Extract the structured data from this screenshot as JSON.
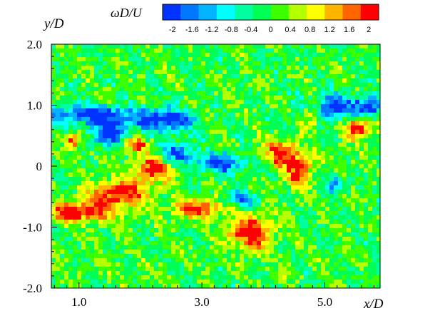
{
  "chart_data": {
    "type": "heatmap",
    "title": "",
    "xlabel": "x/D",
    "ylabel": "y/D",
    "xlim": [
      0.55,
      5.9
    ],
    "ylim": [
      -2.0,
      2.0
    ],
    "x_ticks": [
      1.0,
      3.0,
      5.0
    ],
    "x_tick_labels": [
      "1.0",
      "3.0",
      "5.0"
    ],
    "y_ticks": [
      2.0,
      1.0,
      0,
      -1.0,
      -2.0
    ],
    "y_tick_labels": [
      "2.0",
      "1.0",
      "0",
      "-1.0",
      "-2.0"
    ],
    "grid": false,
    "colorbar": {
      "title": "ωD/U",
      "placement": "top",
      "range": [
        -2.2,
        2.2
      ],
      "ticks": [
        -2,
        -1.6,
        -1.2,
        -0.8,
        -0.4,
        0,
        0.4,
        0.8,
        1.2,
        1.6,
        2
      ],
      "tick_labels": [
        "-2",
        "-1.6",
        "-1.2",
        "-0.8",
        "-0.4",
        "0",
        "0.4",
        "0.8",
        "1.2",
        "1.6",
        "2"
      ],
      "colors": [
        "#0033ff",
        "#0077ff",
        "#00b4ff",
        "#00ffff",
        "#00ffa0",
        "#00ff55",
        "#3cff00",
        "#b4ff00",
        "#ffff00",
        "#ffb400",
        "#ff6400",
        "#ff0000"
      ]
    },
    "field": {
      "description_values": "vorticity wD/U, background near 0",
      "structures": [
        {
          "x": 1.2,
          "y": 0.85,
          "sx": 0.6,
          "sy": 0.14,
          "value": -2.2
        },
        {
          "x": 2.4,
          "y": 0.75,
          "sx": 0.45,
          "sy": 0.18,
          "value": -2.2
        },
        {
          "x": 1.5,
          "y": 0.55,
          "sx": 0.3,
          "sy": 0.2,
          "value": -2.2
        },
        {
          "x": 2.6,
          "y": 0.2,
          "sx": 0.25,
          "sy": 0.15,
          "value": -2.0
        },
        {
          "x": 3.3,
          "y": 0.05,
          "sx": 0.35,
          "sy": 0.15,
          "value": -2.0
        },
        {
          "x": 3.65,
          "y": -0.55,
          "sx": 0.2,
          "sy": 0.1,
          "value": -2.0
        },
        {
          "x": 5.1,
          "y": 0.95,
          "sx": 0.45,
          "sy": 0.2,
          "value": -2.2
        },
        {
          "x": 5.7,
          "y": 0.95,
          "sx": 0.2,
          "sy": 0.18,
          "value": -2.2
        },
        {
          "x": 5.2,
          "y": -0.3,
          "sx": 0.15,
          "sy": 0.12,
          "value": -1.8
        },
        {
          "x": 1.0,
          "y": -0.75,
          "sx": 0.55,
          "sy": 0.15,
          "value": 2.3
        },
        {
          "x": 1.65,
          "y": -0.45,
          "sx": 0.45,
          "sy": 0.2,
          "value": 2.3
        },
        {
          "x": 2.2,
          "y": -0.05,
          "sx": 0.3,
          "sy": 0.18,
          "value": 2.2
        },
        {
          "x": 1.9,
          "y": 0.35,
          "sx": 0.2,
          "sy": 0.12,
          "value": 2.0
        },
        {
          "x": 2.9,
          "y": -0.7,
          "sx": 0.35,
          "sy": 0.14,
          "value": 2.1
        },
        {
          "x": 3.8,
          "y": -1.1,
          "sx": 0.35,
          "sy": 0.25,
          "value": 2.3
        },
        {
          "x": 4.3,
          "y": 0.2,
          "sx": 0.25,
          "sy": 0.2,
          "value": 2.1
        },
        {
          "x": 4.6,
          "y": -0.1,
          "sx": 0.2,
          "sy": 0.25,
          "value": 2.0
        },
        {
          "x": 5.55,
          "y": 0.65,
          "sx": 0.22,
          "sy": 0.2,
          "value": 2.2
        },
        {
          "x": 4.8,
          "y": 0.85,
          "sx": 0.15,
          "sy": 0.2,
          "value": 2.0
        },
        {
          "x": 0.9,
          "y": 0.4,
          "sx": 0.12,
          "sy": 0.12,
          "value": 2.0
        }
      ]
    }
  }
}
